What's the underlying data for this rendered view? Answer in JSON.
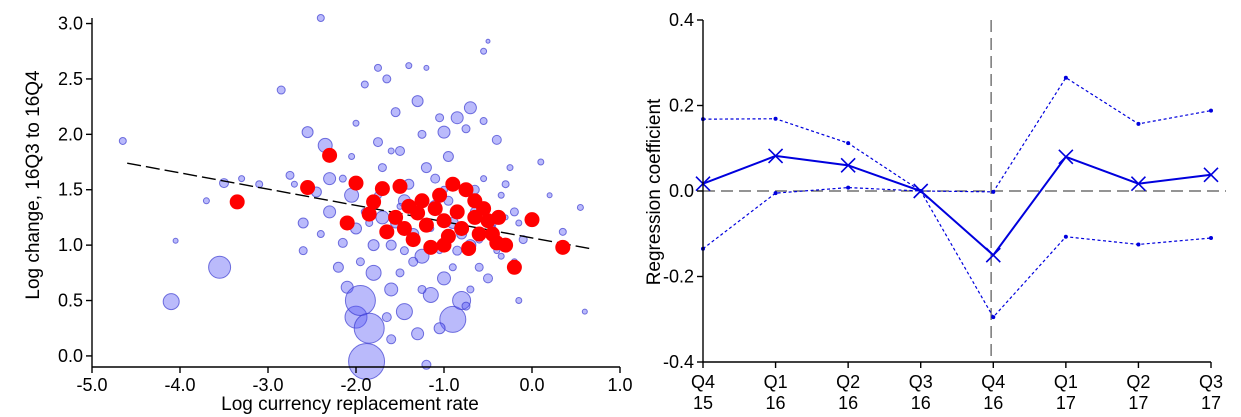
{
  "chart_data": [
    {
      "type": "scatter",
      "xlabel": "Log currency replacement rate",
      "ylabel": "Log change, 16Q3 to 16Q4",
      "xlim": [
        -5.0,
        1.0
      ],
      "ylim": [
        -0.1,
        3.05
      ],
      "xticks": [
        -5.0,
        -4.0,
        -3.0,
        -2.0,
        -1.0,
        0.0,
        1.0
      ],
      "xtick_labels": [
        "-5.0",
        "-4.0",
        "-3.0",
        "-2.0",
        "-1.0",
        "0.0",
        "1.0"
      ],
      "yticks": [
        0.0,
        0.5,
        1.0,
        1.5,
        2.0,
        2.5,
        3.0
      ],
      "ytick_labels": [
        "0.0",
        "0.5",
        "1.0",
        "1.5",
        "2.0",
        "2.5",
        "3.0"
      ],
      "colors": {
        "bubble": "#5a5af5",
        "highlight": "#ff0000",
        "fit": "#000000"
      },
      "fit_line": {
        "x": [
          -4.6,
          0.65
        ],
        "y": [
          1.74,
          0.97
        ]
      },
      "series": [
        {
          "values": [
            [
              -4.65,
              1.94,
              7
            ],
            [
              -4.05,
              1.04,
              5
            ],
            [
              -4.1,
              0.49,
              16
            ],
            [
              -3.55,
              0.8,
              22
            ],
            [
              -3.5,
              1.56,
              9
            ],
            [
              -3.1,
              1.55,
              7
            ],
            [
              -2.85,
              2.4,
              8
            ],
            [
              -2.75,
              1.63,
              8
            ],
            [
              -2.6,
              1.2,
              10
            ],
            [
              -2.55,
              2.02,
              11
            ],
            [
              -2.45,
              1.48,
              10
            ],
            [
              -2.4,
              3.05,
              7
            ],
            [
              -2.35,
              1.9,
              14
            ],
            [
              -2.3,
              1.6,
              12
            ],
            [
              -2.2,
              0.8,
              10
            ],
            [
              -2.15,
              1.02,
              9
            ],
            [
              -2.1,
              0.62,
              12
            ],
            [
              -2.05,
              1.45,
              14
            ],
            [
              -2.0,
              0.35,
              22
            ],
            [
              -2.0,
              1.15,
              11
            ],
            [
              -1.95,
              0.5,
              30
            ],
            [
              -1.9,
              2.45,
              7
            ],
            [
              -1.88,
              -0.05,
              36
            ],
            [
              -1.85,
              0.25,
              30
            ],
            [
              -1.8,
              0.75,
              15
            ],
            [
              -1.75,
              1.93,
              9
            ],
            [
              -1.75,
              2.6,
              7
            ],
            [
              -1.7,
              1.25,
              13
            ],
            [
              -1.65,
              2.5,
              8
            ],
            [
              -1.6,
              1.0,
              10
            ],
            [
              -1.6,
              0.6,
              13
            ],
            [
              -1.55,
              2.2,
              9
            ],
            [
              -1.5,
              1.85,
              9
            ],
            [
              -1.45,
              1.4,
              12
            ],
            [
              -1.45,
              0.4,
              16
            ],
            [
              -1.4,
              2.62,
              6
            ],
            [
              -1.35,
              1.1,
              11
            ],
            [
              -1.3,
              0.2,
              12
            ],
            [
              -1.3,
              2.3,
              11
            ],
            [
              -1.25,
              0.9,
              14
            ],
            [
              -1.2,
              1.7,
              10
            ],
            [
              -1.2,
              2.6,
              5
            ],
            [
              -1.15,
              0.55,
              15
            ],
            [
              -1.1,
              1.35,
              12
            ],
            [
              -1.05,
              2.15,
              8
            ],
            [
              -1.0,
              0.7,
              13
            ],
            [
              -1.0,
              2.02,
              12
            ],
            [
              -0.95,
              1.8,
              10
            ],
            [
              -0.9,
              0.33,
              26
            ],
            [
              -0.9,
              1.2,
              11
            ],
            [
              -0.85,
              2.15,
              12
            ],
            [
              -0.8,
              0.5,
              18
            ],
            [
              -0.75,
              2.05,
              8
            ],
            [
              -0.7,
              1.0,
              11
            ],
            [
              -0.7,
              2.24,
              12
            ],
            [
              -0.65,
              1.5,
              9
            ],
            [
              -0.6,
              0.8,
              8
            ],
            [
              -0.55,
              2.12,
              7
            ],
            [
              -0.55,
              2.75,
              6
            ],
            [
              -0.5,
              2.84,
              4
            ],
            [
              -0.45,
              1.2,
              8
            ],
            [
              -0.4,
              1.95,
              9
            ],
            [
              -0.35,
              0.9,
              6
            ],
            [
              -0.3,
              1.55,
              7
            ],
            [
              -0.25,
              1.7,
              6
            ],
            [
              -0.2,
              1.3,
              8
            ],
            [
              -0.15,
              0.5,
              6
            ],
            [
              -0.1,
              1.05,
              8
            ],
            [
              0.1,
              1.75,
              6
            ],
            [
              0.2,
              1.45,
              5
            ],
            [
              0.35,
              1.12,
              7
            ],
            [
              0.55,
              1.34,
              6
            ],
            [
              0.6,
              0.4,
              5
            ],
            [
              -1.6,
              0.15,
              9
            ],
            [
              -1.2,
              -0.08,
              9
            ],
            [
              -1.05,
              0.25,
              11
            ],
            [
              -2.3,
              1.3,
              12
            ],
            [
              -1.8,
              1.0,
              11
            ],
            [
              -1.4,
              1.55,
              10
            ],
            [
              -1.1,
              1.6,
              9
            ],
            [
              -0.8,
              1.1,
              10
            ],
            [
              -0.5,
              0.7,
              9
            ],
            [
              -2.6,
              0.95,
              8
            ],
            [
              -1.35,
              0.85,
              9
            ],
            [
              -1.55,
              1.2,
              10
            ],
            [
              -0.95,
              1.4,
              9
            ],
            [
              -1.7,
              1.7,
              8
            ],
            [
              -0.65,
              1.3,
              9
            ],
            [
              -2.4,
              1.1,
              7
            ],
            [
              -1.25,
              2.0,
              8
            ],
            [
              -0.85,
              0.95,
              9
            ],
            [
              -1.45,
              0.95,
              8
            ],
            [
              -0.75,
              0.45,
              8
            ],
            [
              -0.45,
              1.15,
              7
            ],
            [
              -0.2,
              0.85,
              6
            ],
            [
              -3.7,
              1.4,
              6
            ],
            [
              -3.3,
              1.6,
              6
            ],
            [
              -2.0,
              2.1,
              6
            ],
            [
              -0.35,
              1.45,
              6
            ],
            [
              -0.15,
              1.2,
              6
            ],
            [
              -1.9,
              1.3,
              7
            ],
            [
              -1.5,
              0.75,
              8
            ],
            [
              -1.0,
              1.5,
              7
            ],
            [
              -0.6,
              1.05,
              7
            ],
            [
              -2.15,
              1.6,
              7
            ],
            [
              -1.3,
              1.3,
              7
            ],
            [
              -0.9,
              0.8,
              7
            ],
            [
              -1.75,
              1.45,
              7
            ],
            [
              -0.55,
              1.6,
              6
            ],
            [
              -1.65,
              0.35,
              9
            ],
            [
              -1.15,
              1.15,
              6
            ],
            [
              -2.7,
              1.55,
              6
            ],
            [
              -1.95,
              0.85,
              8
            ],
            [
              -0.7,
              0.6,
              7
            ],
            [
              -0.4,
              0.95,
              6
            ],
            [
              -1.05,
              0.95,
              6
            ],
            [
              -1.5,
              1.35,
              6
            ],
            [
              -2.05,
              1.8,
              6
            ],
            [
              -0.3,
              1.25,
              5
            ],
            [
              -1.25,
              0.6,
              8
            ],
            [
              -0.85,
              1.3,
              6
            ],
            [
              -1.6,
              1.85,
              6
            ],
            [
              -1.85,
              1.2,
              7
            ],
            [
              -1.0,
              1.25,
              6
            ]
          ]
        },
        {
          "values": [
            [
              -3.35,
              1.39
            ],
            [
              -2.55,
              1.52
            ],
            [
              -2.3,
              1.81
            ],
            [
              -2.1,
              1.2
            ],
            [
              -2.0,
              1.56
            ],
            [
              -1.85,
              1.28
            ],
            [
              -1.8,
              1.39
            ],
            [
              -1.7,
              1.51
            ],
            [
              -1.65,
              1.12
            ],
            [
              -1.55,
              1.25
            ],
            [
              -1.5,
              1.53
            ],
            [
              -1.45,
              1.15
            ],
            [
              -1.35,
              1.05
            ],
            [
              -1.3,
              1.29
            ],
            [
              -1.25,
              1.4
            ],
            [
              -1.2,
              1.18
            ],
            [
              -1.15,
              0.98
            ],
            [
              -1.1,
              1.33
            ],
            [
              -1.05,
              1.45
            ],
            [
              -1.0,
              1.22
            ],
            [
              -0.95,
              1.08
            ],
            [
              -0.9,
              1.55
            ],
            [
              -0.85,
              1.3
            ],
            [
              -0.8,
              1.15
            ],
            [
              -0.75,
              1.5
            ],
            [
              -0.72,
              0.97
            ],
            [
              -0.65,
              1.25
            ],
            [
              -0.6,
              1.1
            ],
            [
              -0.55,
              1.33
            ],
            [
              -0.5,
              1.22
            ],
            [
              -0.45,
              1.1
            ],
            [
              -0.4,
              1.02
            ],
            [
              -0.38,
              1.25
            ],
            [
              -0.3,
              1.0
            ],
            [
              -0.2,
              0.8
            ],
            [
              0.0,
              1.23
            ],
            [
              0.35,
              0.98
            ],
            [
              -1.4,
              1.35
            ],
            [
              -1.0,
              1.0
            ],
            [
              -0.65,
              1.4
            ]
          ]
        }
      ]
    },
    {
      "type": "line",
      "ylabel": "Regression coefficient",
      "categories": [
        [
          "Q4",
          "15"
        ],
        [
          "Q1",
          "16"
        ],
        [
          "Q2",
          "16"
        ],
        [
          "Q3",
          "16"
        ],
        [
          "Q4",
          "16"
        ],
        [
          "Q1",
          "17"
        ],
        [
          "Q2",
          "17"
        ],
        [
          "Q3",
          "17"
        ]
      ],
      "ylim": [
        -0.4,
        0.4
      ],
      "yticks": [
        -0.4,
        -0.2,
        0.0,
        0.2,
        0.4
      ],
      "ytick_labels": [
        "-0.4",
        "-0.2",
        "0.0",
        "0.2",
        "0.4"
      ],
      "reference_x_index": 3.97,
      "colors": {
        "line": "#0000dd",
        "reference": "#555555"
      },
      "series": [
        {
          "values": [
            0.017,
            0.082,
            0.06,
            0.0,
            -0.15,
            0.08,
            0.017,
            0.038
          ]
        },
        {
          "values": [
            0.168,
            0.169,
            0.112,
            0.0,
            -0.002,
            0.265,
            0.157,
            0.188
          ]
        },
        {
          "values": [
            -0.135,
            -0.005,
            0.008,
            0.0,
            -0.295,
            -0.107,
            -0.125,
            -0.11
          ]
        }
      ]
    }
  ]
}
